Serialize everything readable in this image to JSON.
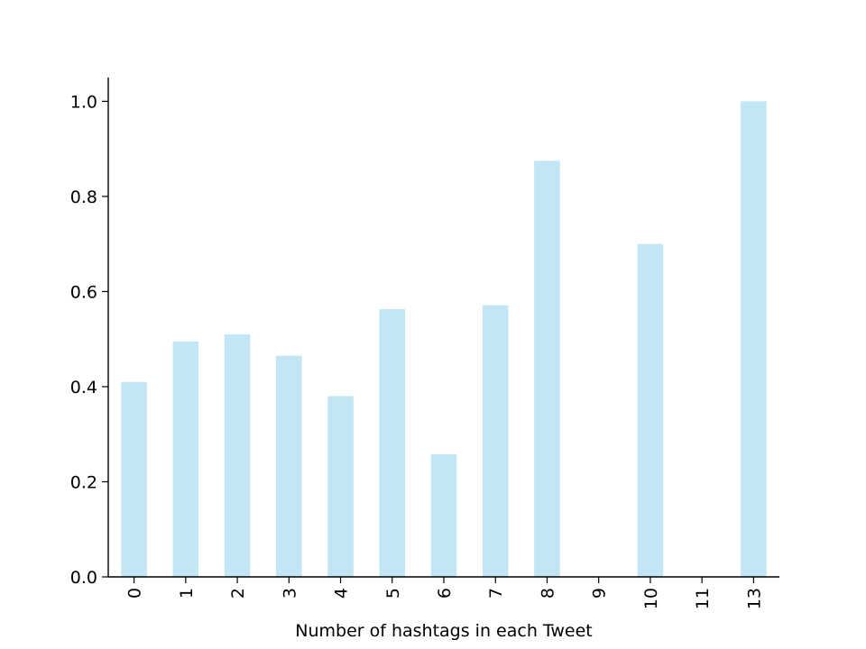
{
  "chart_data": {
    "type": "bar",
    "title": "",
    "xlabel": "Number of hashtags in each Tweet",
    "ylabel": "",
    "categories": [
      "0",
      "1",
      "2",
      "3",
      "4",
      "5",
      "6",
      "7",
      "8",
      "9",
      "10",
      "11",
      "13"
    ],
    "values": [
      0.41,
      0.495,
      0.51,
      0.465,
      0.38,
      0.563,
      0.258,
      0.571,
      0.875,
      0.0,
      0.7,
      0.0,
      1.0
    ],
    "ylim": [
      0,
      1.05
    ],
    "yticks": [
      0.0,
      0.2,
      0.4,
      0.6,
      0.8,
      1.0
    ],
    "ytick_labels": [
      "0.0",
      "0.2",
      "0.4",
      "0.6",
      "0.8",
      "1.0"
    ],
    "grid": false,
    "legend": "none",
    "bar_color": "#c2e6f3",
    "axis_color": "#000000"
  }
}
